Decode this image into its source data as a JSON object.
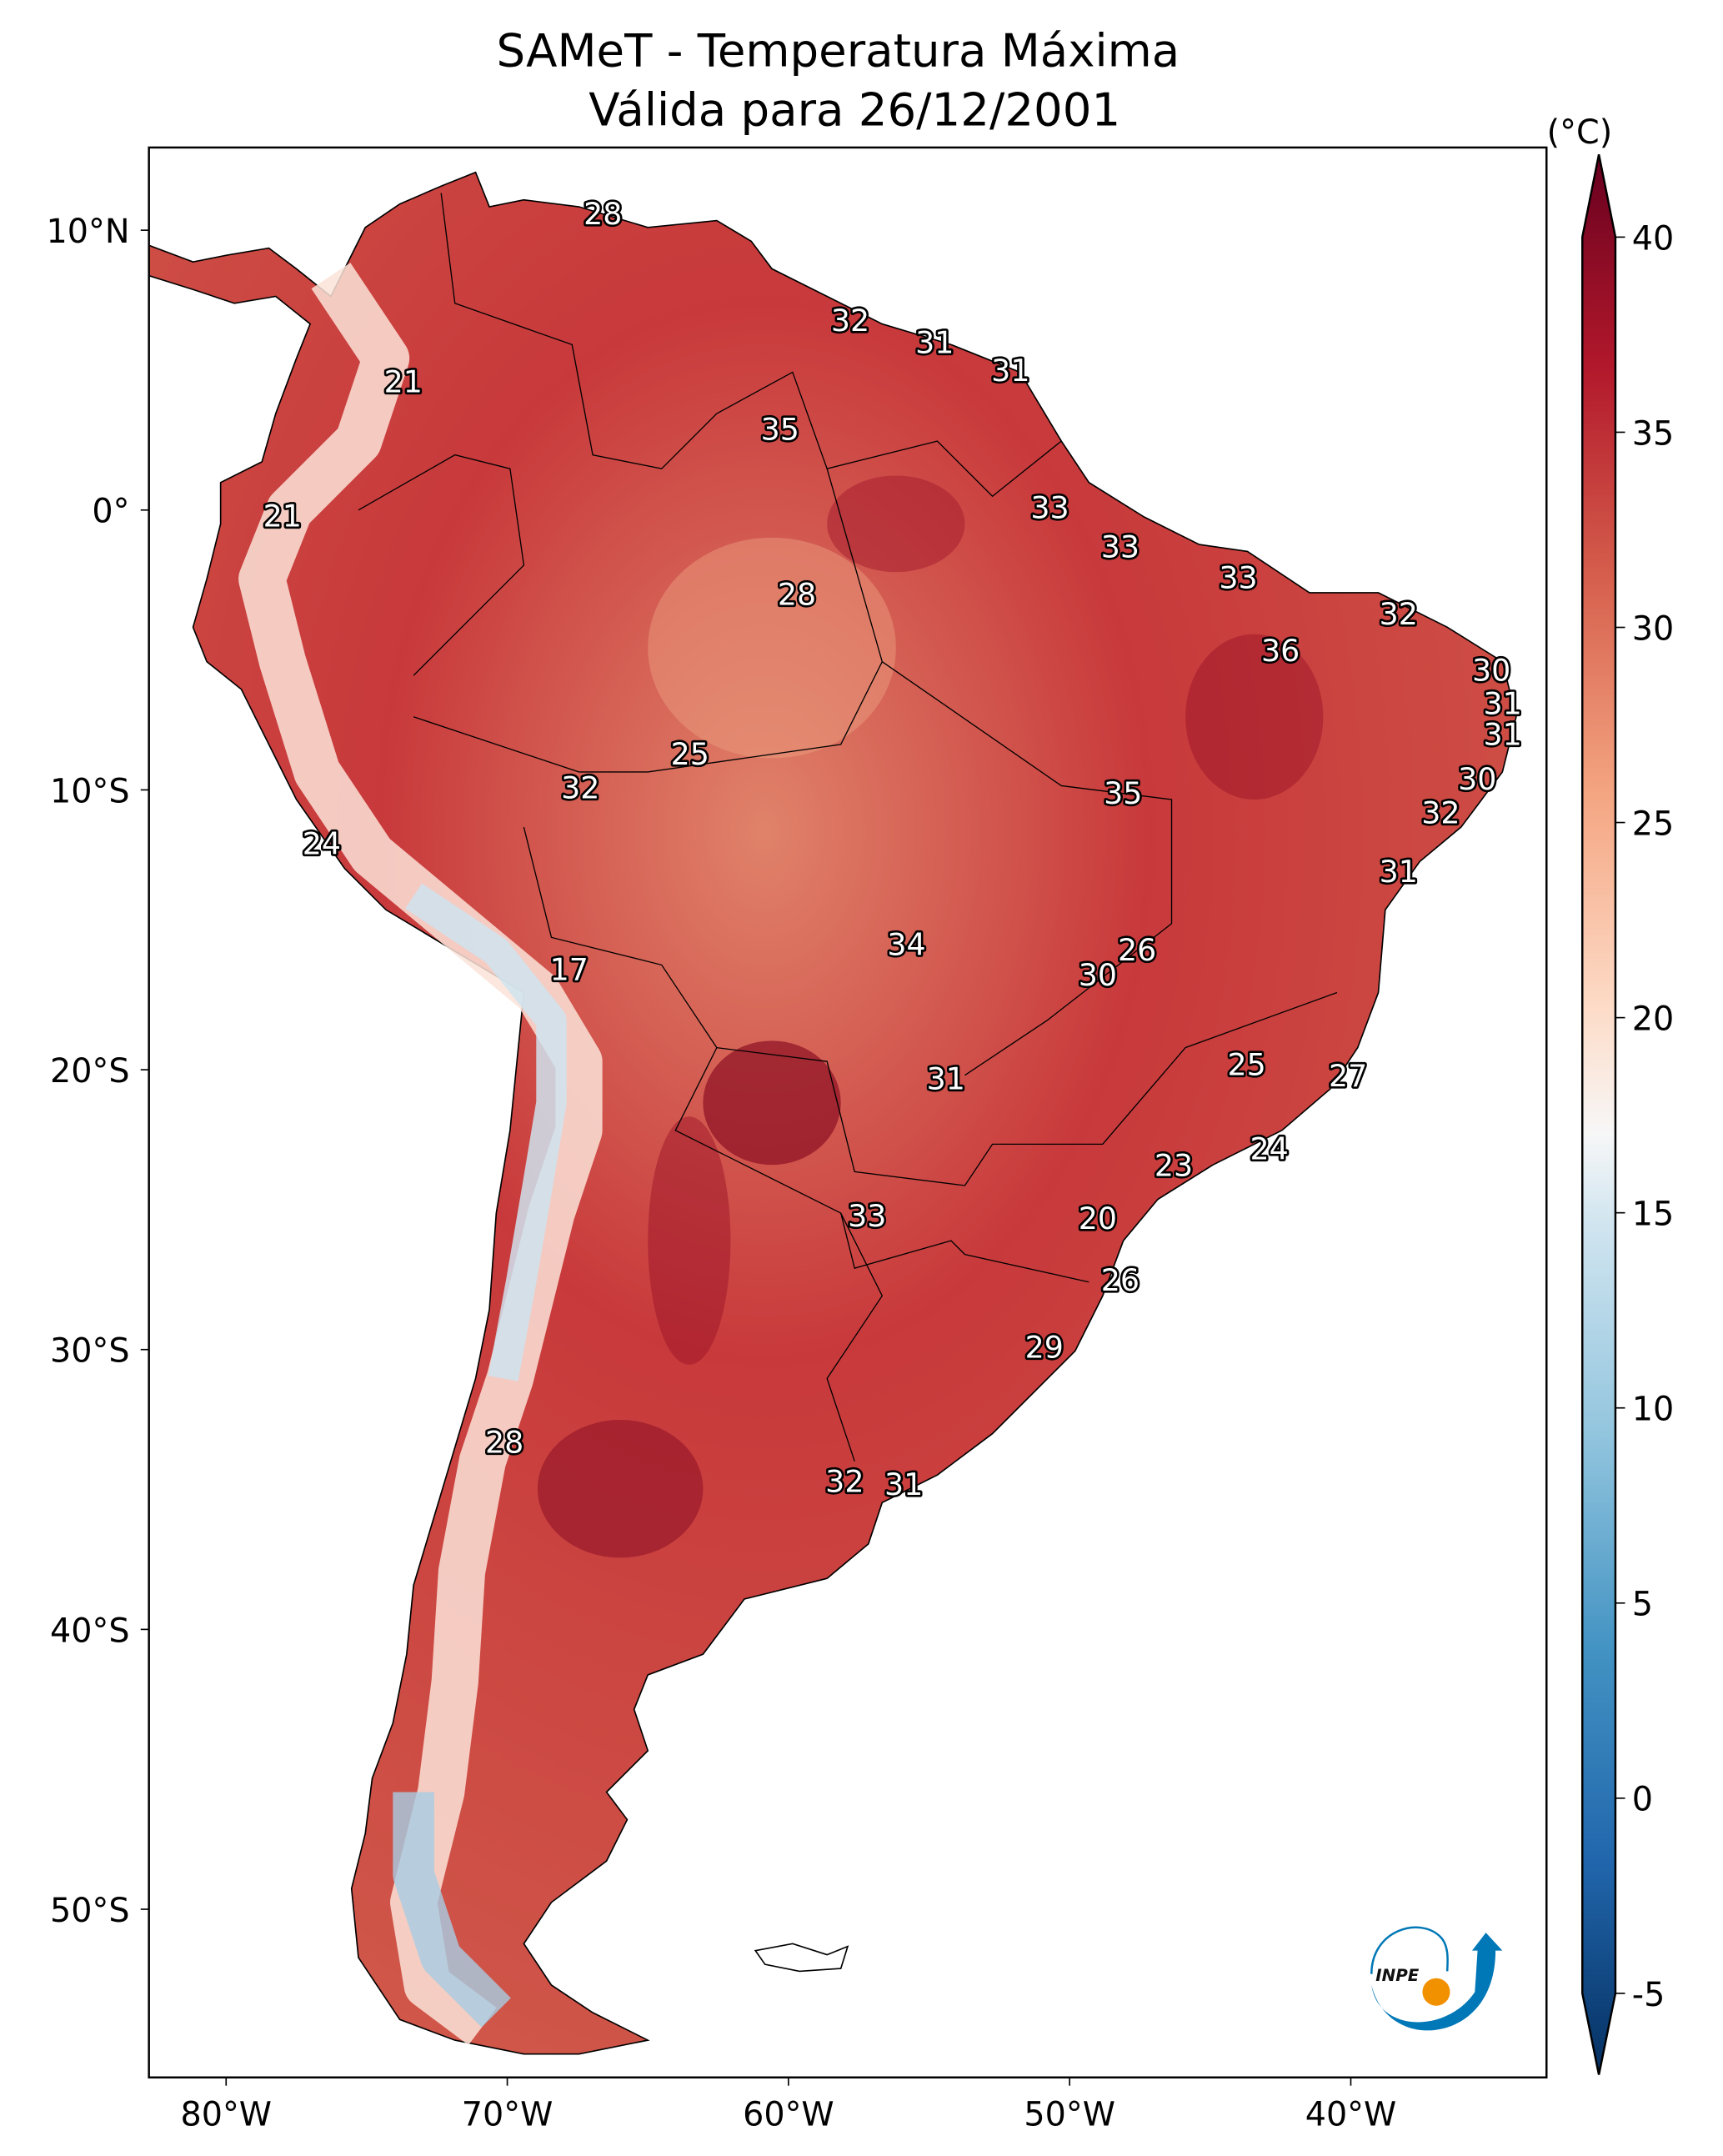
{
  "title": {
    "line1": "SAMeT - Temperatura Máxima",
    "line2": "Válida para 26/12/2001"
  },
  "colorbar": {
    "unit_label": "(°C)",
    "ticks": [
      "40",
      "35",
      "30",
      "25",
      "20",
      "15",
      "10",
      "5",
      "0",
      "-5"
    ],
    "range": [
      -5,
      40
    ],
    "extend": "both",
    "colormap": "RdBu_r",
    "colors": {
      "40": "#67001f",
      "35": "#b2182b",
      "30": "#d6604d",
      "25": "#f4a582",
      "20": "#fddbc7",
      "17": "#f7f7f7",
      "15": "#d1e5f0",
      "10": "#92c5de",
      "5": "#4393c3",
      "0": "#2166ac",
      "-5": "#053061"
    }
  },
  "axes": {
    "lon_ticks": [
      {
        "lon": -80,
        "label": "80°W"
      },
      {
        "lon": -70,
        "label": "70°W"
      },
      {
        "lon": -60,
        "label": "60°W"
      },
      {
        "lon": -50,
        "label": "50°W"
      },
      {
        "lon": -40,
        "label": "40°W"
      }
    ],
    "lat_ticks": [
      {
        "lat": 10,
        "label": "10°N"
      },
      {
        "lat": 0,
        "label": "0°"
      },
      {
        "lat": -10,
        "label": "10°S"
      },
      {
        "lat": -20,
        "label": "20°S"
      },
      {
        "lat": -30,
        "label": "30°S"
      },
      {
        "lat": -40,
        "label": "40°S"
      },
      {
        "lat": -50,
        "label": "50°S"
      }
    ],
    "extent": {
      "lon": [
        -82.75,
        -33
      ],
      "lat": [
        -56,
        13
      ]
    }
  },
  "logo": {
    "text": "INPE",
    "colors": {
      "blue": "#0077b6",
      "orange": "#f29100"
    }
  },
  "stations": [
    {
      "lon": -66.6,
      "lat": 10.6,
      "value": "28"
    },
    {
      "lon": -73.7,
      "lat": 4.6,
      "value": "21"
    },
    {
      "lon": -57.8,
      "lat": 6.8,
      "value": "32"
    },
    {
      "lon": -54.8,
      "lat": 6.0,
      "value": "31"
    },
    {
      "lon": -52.1,
      "lat": 5.0,
      "value": "31"
    },
    {
      "lon": -60.3,
      "lat": 2.9,
      "value": "35"
    },
    {
      "lon": -78.0,
      "lat": -0.2,
      "value": "21"
    },
    {
      "lon": -50.7,
      "lat": 0.1,
      "value": "33"
    },
    {
      "lon": -48.2,
      "lat": -1.3,
      "value": "33"
    },
    {
      "lon": -59.7,
      "lat": -3.0,
      "value": "28"
    },
    {
      "lon": -44.0,
      "lat": -2.4,
      "value": "33"
    },
    {
      "lon": -38.3,
      "lat": -3.7,
      "value": "32"
    },
    {
      "lon": -42.5,
      "lat": -5.0,
      "value": "36"
    },
    {
      "lon": -35.0,
      "lat": -5.7,
      "value": "30"
    },
    {
      "lon": -34.6,
      "lat": -6.9,
      "value": "31"
    },
    {
      "lon": -34.6,
      "lat": -8.0,
      "value": "31"
    },
    {
      "lon": -63.5,
      "lat": -8.7,
      "value": "25"
    },
    {
      "lon": -35.5,
      "lat": -9.6,
      "value": "30"
    },
    {
      "lon": -67.4,
      "lat": -9.9,
      "value": "32"
    },
    {
      "lon": -48.1,
      "lat": -10.1,
      "value": "35"
    },
    {
      "lon": -36.8,
      "lat": -10.8,
      "value": "32"
    },
    {
      "lon": -76.6,
      "lat": -11.9,
      "value": "24"
    },
    {
      "lon": -38.3,
      "lat": -12.9,
      "value": "31"
    },
    {
      "lon": -55.8,
      "lat": -15.5,
      "value": "34"
    },
    {
      "lon": -47.6,
      "lat": -15.7,
      "value": "26"
    },
    {
      "lon": -49.0,
      "lat": -16.6,
      "value": "30"
    },
    {
      "lon": -67.8,
      "lat": -16.4,
      "value": "17"
    },
    {
      "lon": -43.7,
      "lat": -19.8,
      "value": "25"
    },
    {
      "lon": -40.1,
      "lat": -20.2,
      "value": "27"
    },
    {
      "lon": -54.4,
      "lat": -20.3,
      "value": "31"
    },
    {
      "lon": -42.9,
      "lat": -22.8,
      "value": "24"
    },
    {
      "lon": -46.3,
      "lat": -23.4,
      "value": "23"
    },
    {
      "lon": -57.2,
      "lat": -25.2,
      "value": "33"
    },
    {
      "lon": -49.0,
      "lat": -25.3,
      "value": "20"
    },
    {
      "lon": -48.2,
      "lat": -27.5,
      "value": "26"
    },
    {
      "lon": -50.9,
      "lat": -29.9,
      "value": "29"
    },
    {
      "lon": -70.1,
      "lat": -33.3,
      "value": "28"
    },
    {
      "lon": -58.0,
      "lat": -34.7,
      "value": "32"
    },
    {
      "lon": -55.9,
      "lat": -34.8,
      "value": "31"
    }
  ]
}
